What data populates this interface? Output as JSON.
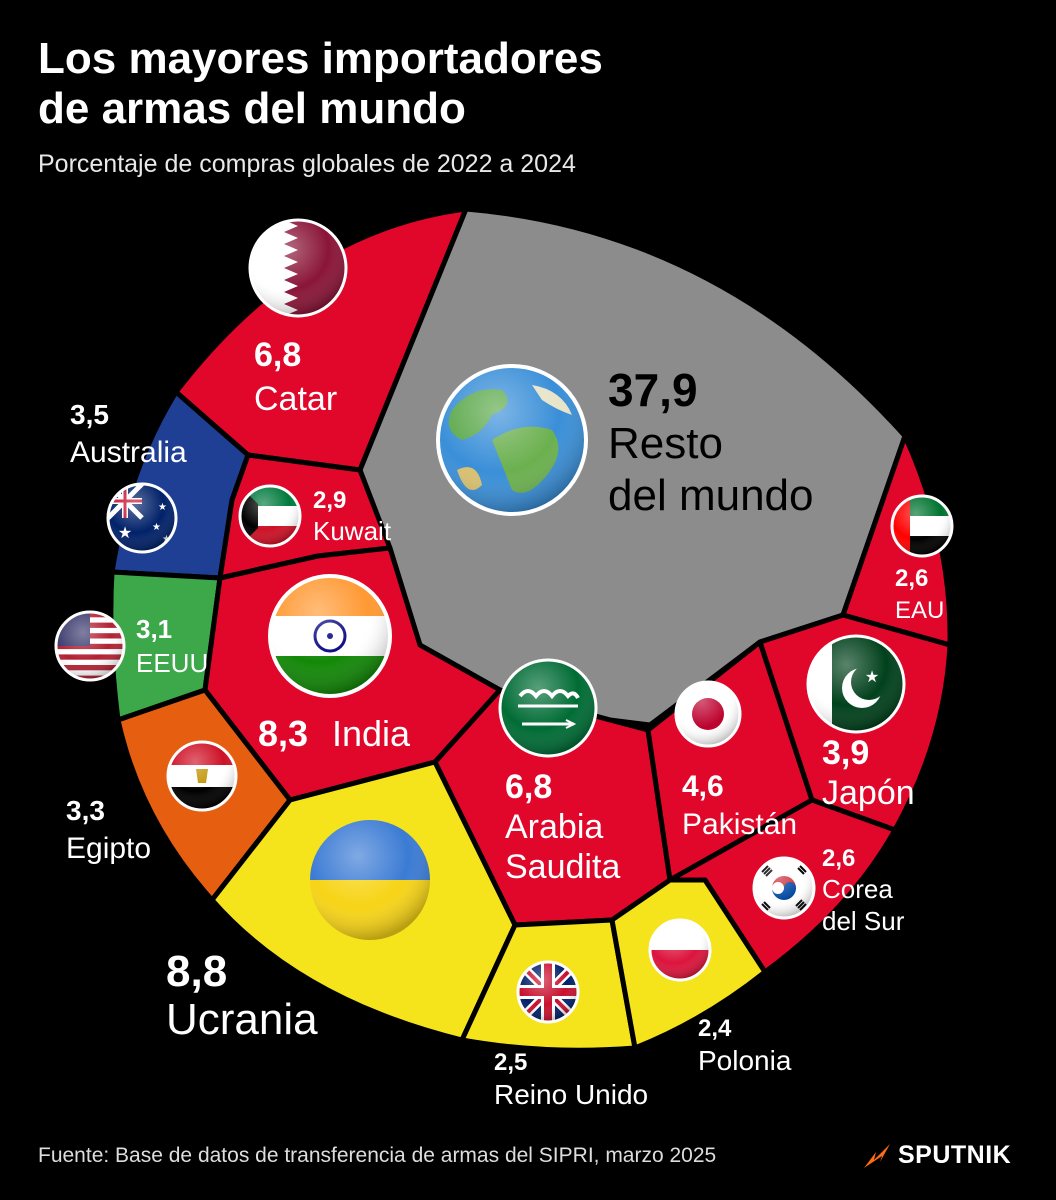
{
  "title_line1": "Los mayores importadores",
  "title_line2": "de armas del mundo",
  "subtitle": "Porcentaje de compras globales de 2022 a 2024",
  "source": "Fuente: Base de datos de transferencia de armas del SIPRI, marzo 2025",
  "brand": "SPUTNIK",
  "colors": {
    "background": "#000000",
    "red": "#e0072b",
    "grey": "#8c8c8c",
    "blue": "#1f3f95",
    "green": "#3ca84a",
    "orange": "#e65e10",
    "yellow": "#f5e31c",
    "brand": "#ff6a13"
  },
  "chart_data": {
    "type": "voronoi-treemap",
    "unit": "%",
    "items": [
      {
        "key": "resto",
        "value": "37,9",
        "label_lines": [
          "Resto",
          "del mundo"
        ],
        "icon": "globe-icon",
        "color": "#8c8c8c"
      },
      {
        "key": "ucrania",
        "value": "8,8",
        "label_lines": [
          "Ucrania"
        ],
        "icon": "flag-ukraine-icon",
        "color": "#f5e31c"
      },
      {
        "key": "india",
        "value": "8,3",
        "label_lines": [
          "India"
        ],
        "icon": "flag-india-icon",
        "color": "#e0072b"
      },
      {
        "key": "catar",
        "value": "6,8",
        "label_lines": [
          "Catar"
        ],
        "icon": "flag-qatar-icon",
        "color": "#e0072b"
      },
      {
        "key": "arabia",
        "value": "6,8",
        "label_lines": [
          "Arabia",
          "Saudita"
        ],
        "icon": "flag-saudi-arabia-icon",
        "color": "#e0072b"
      },
      {
        "key": "pakistan",
        "value": "4,6",
        "label_lines": [
          "Pakistán"
        ],
        "icon": "flag-pakistan-icon",
        "color": "#e0072b"
      },
      {
        "key": "japon",
        "value": "3,9",
        "label_lines": [
          "Japón"
        ],
        "icon": "flag-japan-icon",
        "color": "#e0072b"
      },
      {
        "key": "australia",
        "value": "3,5",
        "label_lines": [
          "Australia"
        ],
        "icon": "flag-australia-icon",
        "color": "#1f3f95"
      },
      {
        "key": "egipto",
        "value": "3,3",
        "label_lines": [
          "Egipto"
        ],
        "icon": "flag-egypt-icon",
        "color": "#e65e10"
      },
      {
        "key": "eeuu",
        "value": "3,1",
        "label_lines": [
          "EEUU"
        ],
        "icon": "flag-usa-icon",
        "color": "#3ca84a"
      },
      {
        "key": "kuwait",
        "value": "2,9",
        "label_lines": [
          "Kuwait"
        ],
        "icon": "flag-kuwait-icon",
        "color": "#e0072b"
      },
      {
        "key": "eau",
        "value": "2,6",
        "label_lines": [
          "EAU"
        ],
        "icon": "flag-uae-icon",
        "color": "#e0072b"
      },
      {
        "key": "corea",
        "value": "2,6",
        "label_lines": [
          "Corea",
          "del Sur"
        ],
        "icon": "flag-south-korea-icon",
        "color": "#e0072b"
      },
      {
        "key": "reino",
        "value": "2,5",
        "label_lines": [
          "Reino Unido"
        ],
        "icon": "flag-uk-icon",
        "color": "#f5e31c"
      },
      {
        "key": "polonia",
        "value": "2,4",
        "label_lines": [
          "Polonia"
        ],
        "icon": "flag-poland-icon",
        "color": "#f5e31c"
      }
    ]
  }
}
